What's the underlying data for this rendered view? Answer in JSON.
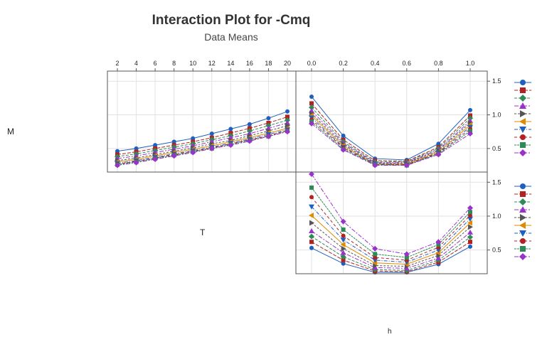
{
  "title": "Interaction Plot for -Cmq",
  "subtitle": "Data Means",
  "factors": {
    "row1": "M",
    "row2": "T",
    "bottom": "h"
  },
  "colors": [
    "#1f5fbf",
    "#b22222",
    "#2e8b57",
    "#9932cc",
    "#555555",
    "#e08a00",
    "#1f5fbf",
    "#b22222",
    "#2e8b57",
    "#9932cc"
  ],
  "markers": [
    "circle",
    "square",
    "diamond",
    "triangle-up",
    "triangle-right",
    "triangle-left",
    "triangle-down",
    "circle",
    "square",
    "diamond"
  ],
  "chart_data": [
    {
      "type": "line",
      "panel": "M-by-T",
      "x": [
        2,
        4,
        6,
        8,
        10,
        12,
        14,
        16,
        18,
        20
      ],
      "xticks": [
        "2",
        "4",
        "6",
        "8",
        "10",
        "12",
        "14",
        "16",
        "18",
        "20"
      ],
      "ylim": [
        0.15,
        1.65
      ],
      "yticks": [
        "0.5",
        "1.0",
        "1.5"
      ],
      "series": [
        {
          "values": [
            0.46,
            0.5,
            0.55,
            0.6,
            0.65,
            0.72,
            0.79,
            0.86,
            0.95,
            1.05
          ]
        },
        {
          "values": [
            0.41,
            0.45,
            0.5,
            0.55,
            0.6,
            0.66,
            0.73,
            0.8,
            0.88,
            0.97
          ]
        },
        {
          "values": [
            0.38,
            0.42,
            0.47,
            0.52,
            0.57,
            0.63,
            0.69,
            0.76,
            0.84,
            0.92
          ]
        },
        {
          "values": [
            0.35,
            0.39,
            0.44,
            0.49,
            0.54,
            0.6,
            0.66,
            0.72,
            0.8,
            0.88
          ]
        },
        {
          "values": [
            0.32,
            0.36,
            0.41,
            0.46,
            0.51,
            0.57,
            0.62,
            0.69,
            0.76,
            0.84
          ]
        },
        {
          "values": [
            0.3,
            0.34,
            0.39,
            0.44,
            0.49,
            0.54,
            0.6,
            0.66,
            0.73,
            0.8
          ]
        },
        {
          "values": [
            0.28,
            0.32,
            0.37,
            0.42,
            0.47,
            0.52,
            0.58,
            0.64,
            0.71,
            0.78
          ]
        },
        {
          "values": [
            0.27,
            0.31,
            0.36,
            0.41,
            0.46,
            0.51,
            0.57,
            0.63,
            0.69,
            0.77
          ]
        },
        {
          "values": [
            0.26,
            0.3,
            0.35,
            0.4,
            0.45,
            0.5,
            0.56,
            0.62,
            0.68,
            0.76
          ]
        },
        {
          "values": [
            0.25,
            0.29,
            0.34,
            0.39,
            0.44,
            0.5,
            0.55,
            0.61,
            0.68,
            0.75
          ]
        }
      ]
    },
    {
      "type": "line",
      "panel": "M-by-h",
      "x": [
        0.0,
        0.2,
        0.4,
        0.6,
        0.8,
        1.0
      ],
      "xticks": [
        "0.0",
        "0.2",
        "0.4",
        "0.6",
        "0.8",
        "1.0"
      ],
      "ylim": [
        0.15,
        1.65
      ],
      "yticks": [
        "0.5",
        "1.0",
        "1.5"
      ],
      "series": [
        {
          "values": [
            1.27,
            0.69,
            0.35,
            0.33,
            0.57,
            1.07
          ]
        },
        {
          "values": [
            1.17,
            0.63,
            0.32,
            0.31,
            0.52,
            0.99
          ]
        },
        {
          "values": [
            1.11,
            0.6,
            0.3,
            0.3,
            0.5,
            0.95
          ]
        },
        {
          "values": [
            1.06,
            0.58,
            0.29,
            0.29,
            0.48,
            0.91
          ]
        },
        {
          "values": [
            1.02,
            0.56,
            0.28,
            0.28,
            0.47,
            0.88
          ]
        },
        {
          "values": [
            0.99,
            0.54,
            0.27,
            0.27,
            0.45,
            0.85
          ]
        },
        {
          "values": [
            0.96,
            0.52,
            0.27,
            0.26,
            0.44,
            0.82
          ]
        },
        {
          "values": [
            0.93,
            0.51,
            0.26,
            0.26,
            0.43,
            0.79
          ]
        },
        {
          "values": [
            0.9,
            0.49,
            0.26,
            0.25,
            0.42,
            0.76
          ]
        },
        {
          "values": [
            0.87,
            0.48,
            0.25,
            0.25,
            0.41,
            0.72
          ]
        }
      ]
    },
    {
      "type": "line",
      "panel": "T-by-h",
      "x": [
        0.0,
        0.2,
        0.4,
        0.6,
        0.8,
        1.0
      ],
      "xticks": [],
      "ylim": [
        0.15,
        1.65
      ],
      "yticks": [
        "0.5",
        "1.0",
        "1.5"
      ],
      "series": [
        {
          "values": [
            0.53,
            0.3,
            0.17,
            0.17,
            0.29,
            0.55
          ]
        },
        {
          "values": [
            0.62,
            0.35,
            0.19,
            0.18,
            0.32,
            0.62
          ]
        },
        {
          "values": [
            0.7,
            0.4,
            0.21,
            0.2,
            0.35,
            0.69
          ]
        },
        {
          "values": [
            0.78,
            0.46,
            0.24,
            0.23,
            0.38,
            0.76
          ]
        },
        {
          "values": [
            0.9,
            0.52,
            0.27,
            0.26,
            0.42,
            0.84
          ]
        },
        {
          "values": [
            1.01,
            0.58,
            0.31,
            0.29,
            0.46,
            0.9
          ]
        },
        {
          "values": [
            1.14,
            0.65,
            0.35,
            0.32,
            0.5,
            0.96
          ]
        },
        {
          "values": [
            1.28,
            0.71,
            0.39,
            0.35,
            0.54,
            1.01
          ]
        },
        {
          "values": [
            1.42,
            0.8,
            0.44,
            0.39,
            0.58,
            1.06
          ]
        },
        {
          "values": [
            1.62,
            0.92,
            0.52,
            0.44,
            0.62,
            1.12
          ]
        }
      ]
    }
  ]
}
